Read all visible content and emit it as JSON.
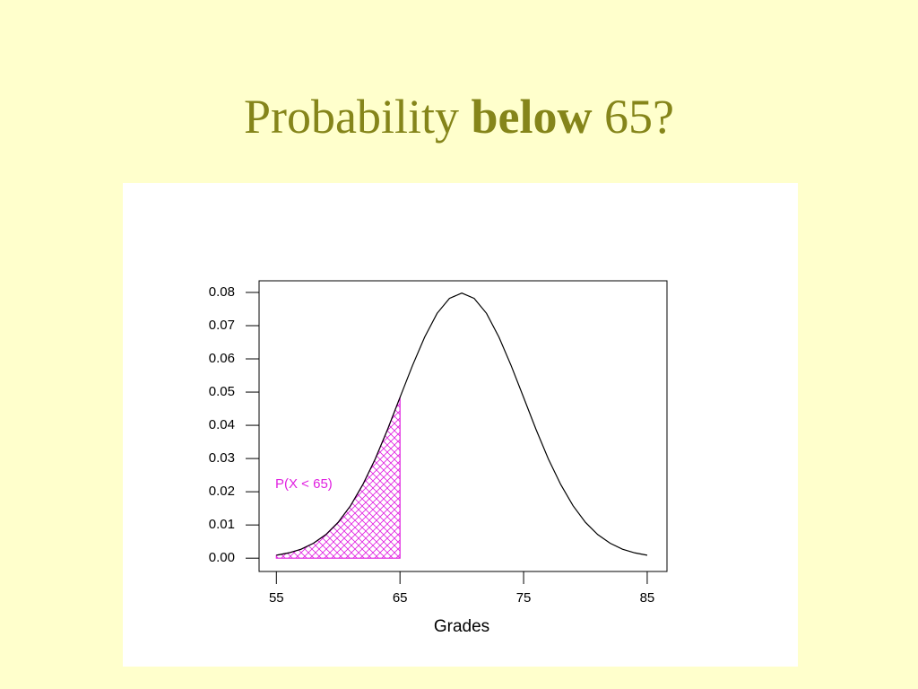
{
  "chart_data": {
    "type": "line",
    "title_parts": [
      "Probability",
      "below",
      "65?"
    ],
    "xlabel": "Grades",
    "annotation": "P(X < 65)",
    "x": [
      55,
      56,
      57,
      58,
      59,
      60,
      61,
      62,
      63,
      64,
      65,
      66,
      67,
      68,
      69,
      70,
      71,
      72,
      73,
      74,
      75,
      76,
      77,
      78,
      79,
      80,
      81,
      82,
      83,
      84,
      85
    ],
    "series": [
      {
        "color": "#000000",
        "values": [
          0.0009,
          0.0016,
          0.0027,
          0.0045,
          0.0071,
          0.0108,
          0.0158,
          0.0222,
          0.0299,
          0.0388,
          0.0484,
          0.0579,
          0.0666,
          0.0737,
          0.0782,
          0.0798,
          0.0782,
          0.0737,
          0.0666,
          0.0579,
          0.0484,
          0.0388,
          0.0299,
          0.0222,
          0.0158,
          0.0108,
          0.0071,
          0.0045,
          0.0027,
          0.0016,
          0.0009
        ]
      }
    ],
    "shade": {
      "x_max": 65,
      "color": "#e020e0"
    },
    "xlim": [
      53.6,
      86.6
    ],
    "ylim": [
      -0.004,
      0.0835
    ],
    "xticks": [
      55,
      65,
      75,
      85
    ],
    "yticks": [
      {
        "value": 0,
        "label": "0.00"
      },
      {
        "value": 0.01,
        "label": "0.01"
      },
      {
        "value": 0.02,
        "label": "0.02"
      },
      {
        "value": 0.03,
        "label": "0.03"
      },
      {
        "value": 0.04,
        "label": "0.04"
      },
      {
        "value": 0.05,
        "label": "0.05"
      },
      {
        "value": 0.06,
        "label": "0.06"
      },
      {
        "value": 0.07,
        "label": "0.07"
      },
      {
        "value": 0.08,
        "label": "0.08"
      }
    ]
  }
}
